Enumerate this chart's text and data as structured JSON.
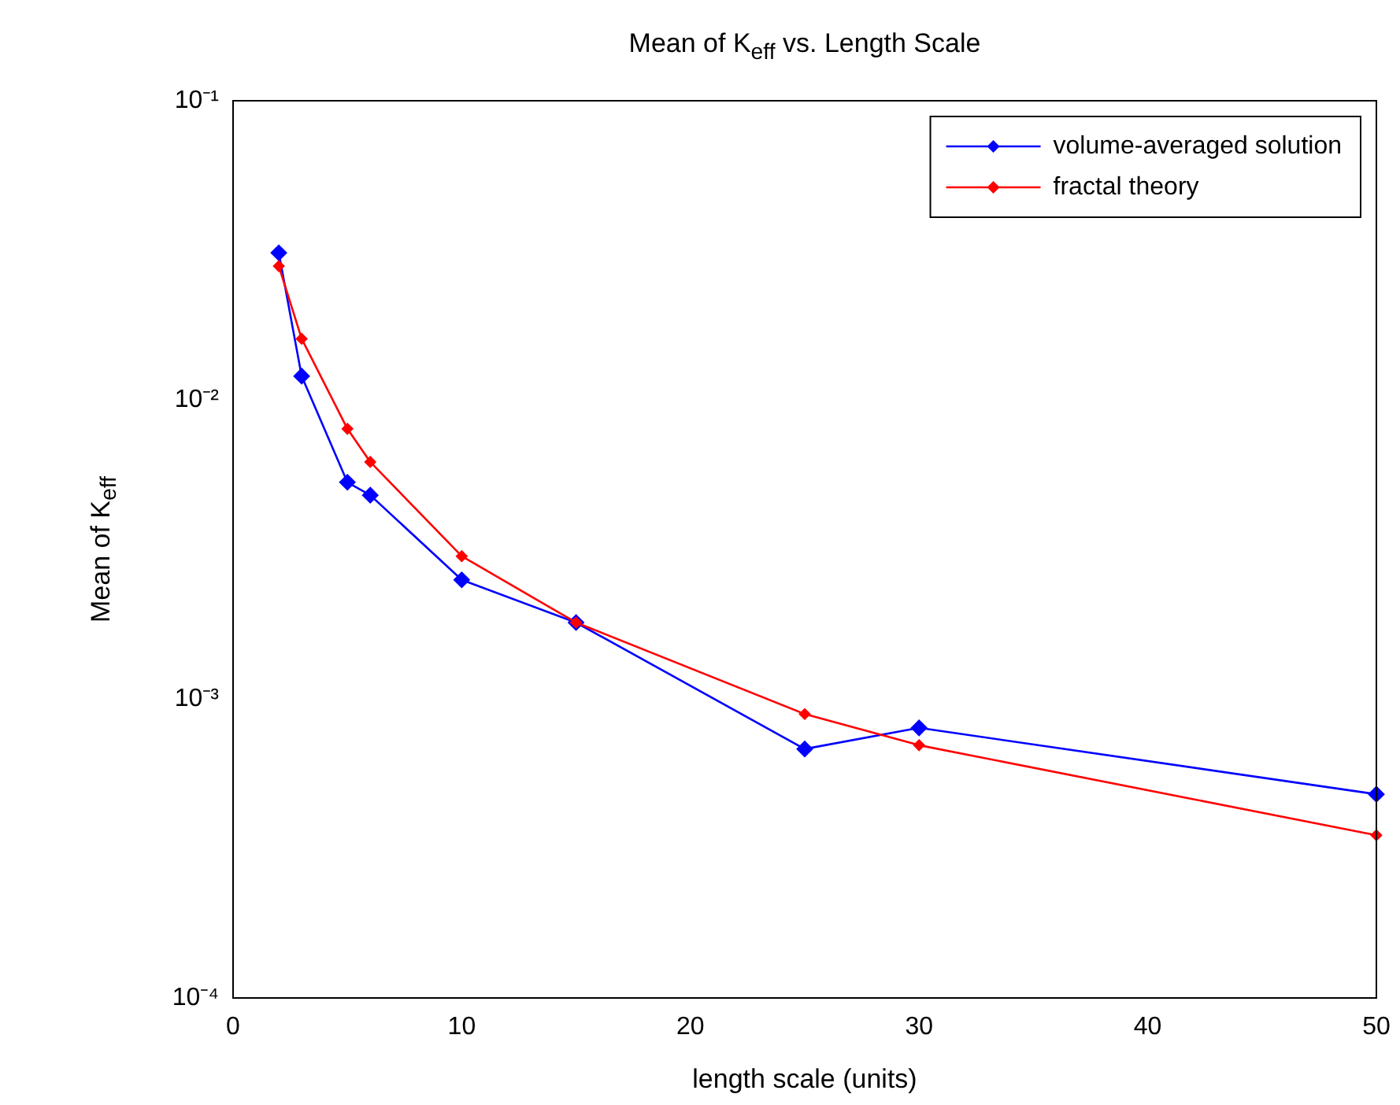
{
  "chart_data": {
    "type": "line",
    "title": "Mean of K$_{eff}$ vs. Length Scale",
    "xlabel": "length scale (units)",
    "ylabel": "Mean of K$_{eff}$",
    "x": [
      2,
      3,
      5,
      6,
      10,
      15,
      25,
      30,
      50
    ],
    "series": [
      {
        "name": "volume-averaged solution",
        "color": "#0000ff",
        "values": [
          0.031,
          0.012,
          0.0053,
          0.0048,
          0.0025,
          0.0018,
          0.00068,
          0.0008,
          0.00048
        ]
      },
      {
        "name": "fractal theory",
        "color": "#ff0000",
        "values": [
          0.028,
          0.016,
          0.008,
          0.0062,
          0.003,
          0.0018,
          0.00089,
          0.0007,
          0.00035
        ]
      }
    ],
    "xlim": [
      0,
      50
    ],
    "xticks": [
      0,
      10,
      20,
      30,
      40,
      50
    ],
    "ylim": [
      0.0001,
      0.1
    ],
    "yticks": [
      {
        "value": 0.0001,
        "label": "10⁻⁴"
      },
      {
        "value": 0.001,
        "label": "10⁻³"
      },
      {
        "value": 0.01,
        "label": "10⁻²"
      },
      {
        "value": 0.1,
        "label": "10⁻¹"
      }
    ],
    "log": "y",
    "grid": false,
    "legend": "top right",
    "marker": "diamond",
    "line_style": "solid"
  }
}
